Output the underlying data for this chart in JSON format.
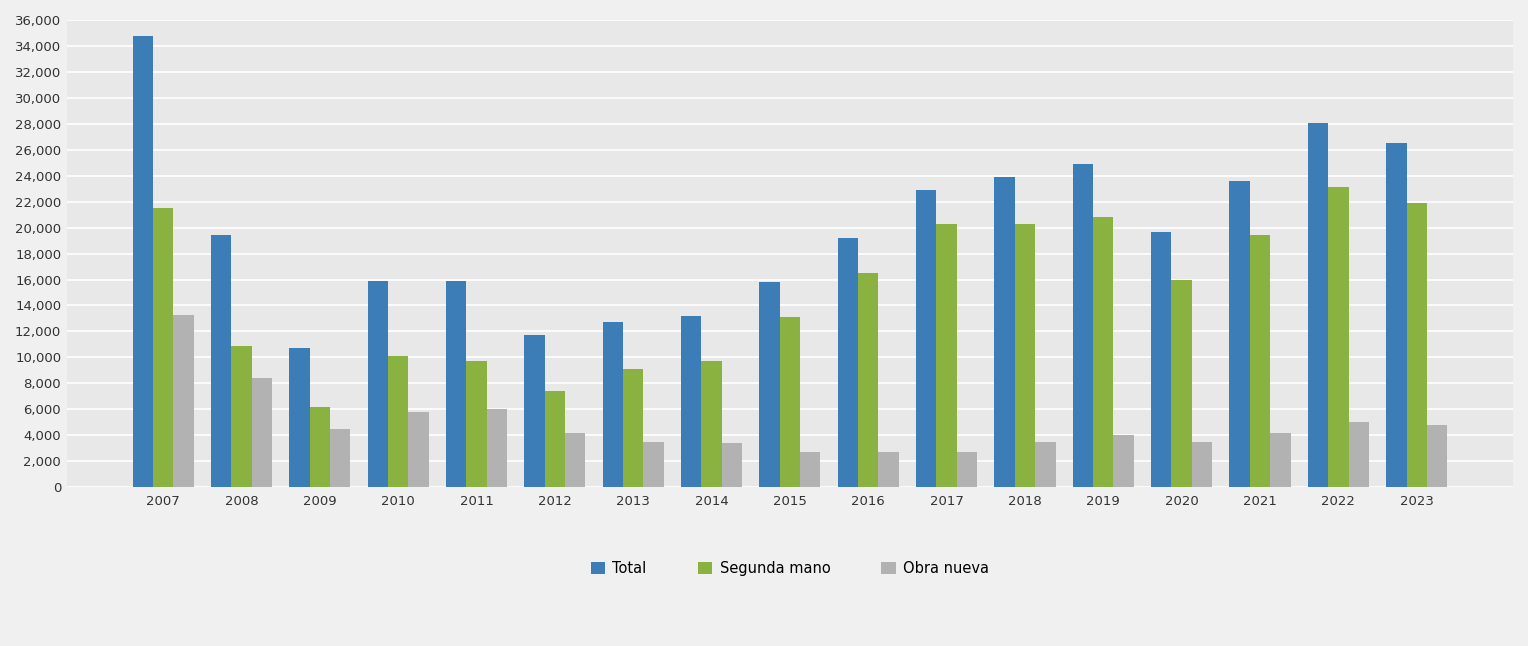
{
  "years": [
    2007,
    2008,
    2009,
    2010,
    2011,
    2012,
    2013,
    2014,
    2015,
    2016,
    2017,
    2018,
    2019,
    2020,
    2021,
    2022,
    2023
  ],
  "total": [
    34800,
    19400,
    10700,
    15900,
    15900,
    11700,
    12700,
    13200,
    15800,
    19200,
    22900,
    23900,
    24900,
    19700,
    23600,
    28100,
    26500
  ],
  "segunda_mano": [
    21500,
    10900,
    6200,
    10100,
    9750,
    7400,
    9100,
    9750,
    13100,
    16500,
    20300,
    20300,
    20800,
    16000,
    19400,
    23100,
    21900
  ],
  "obra_nueva": [
    13300,
    8400,
    4500,
    5800,
    6000,
    4200,
    3500,
    3400,
    2700,
    2700,
    2700,
    3500,
    4000,
    3500,
    4200,
    5000,
    4800
  ],
  "color_total": "#3c7db8",
  "color_segunda": "#8ab240",
  "color_obra": "#b2b2b2",
  "fig_bg_color": "#f0f0f0",
  "plot_bg_color": "#e8e8e8",
  "grid_color": "#ffffff",
  "ylim": [
    0,
    36000
  ],
  "yticks": [
    0,
    2000,
    4000,
    6000,
    8000,
    10000,
    12000,
    14000,
    16000,
    18000,
    20000,
    22000,
    24000,
    26000,
    28000,
    30000,
    32000,
    34000,
    36000
  ],
  "legend_labels": [
    "Total",
    "Segunda mano",
    "Obra nueva"
  ],
  "bar_width": 0.26
}
